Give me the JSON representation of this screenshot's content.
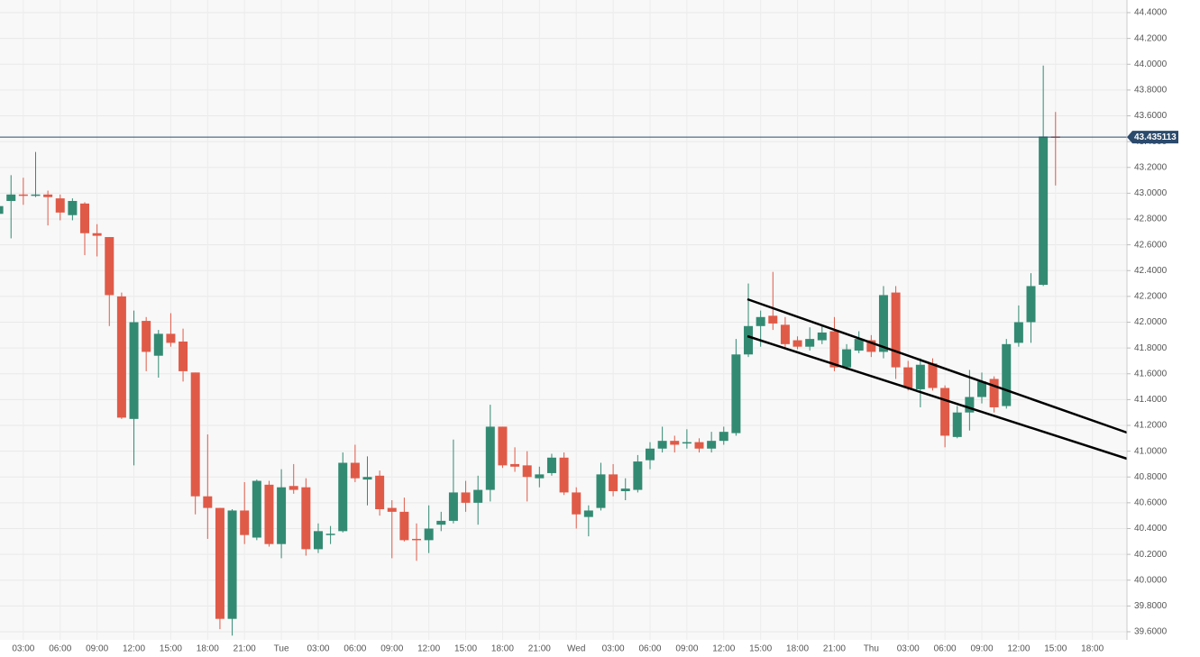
{
  "chart_data": {
    "type": "candlestick",
    "categories": [
      null,
      null,
      "03:00",
      null,
      null,
      "06:00",
      null,
      null,
      "09:00",
      null,
      null,
      "12:00",
      null,
      null,
      "15:00",
      null,
      null,
      "18:00",
      null,
      null,
      "21:00",
      null,
      null,
      "Tue",
      null,
      null,
      "03:00",
      null,
      null,
      "06:00",
      null,
      null,
      "09:00",
      null,
      null,
      "12:00",
      null,
      null,
      "15:00",
      null,
      null,
      "18:00",
      null,
      null,
      "21:00",
      null,
      null,
      "Wed",
      null,
      null,
      "03:00",
      null,
      null,
      "06:00",
      null,
      null,
      "09:00",
      null,
      null,
      "12:00",
      null,
      null,
      "15:00",
      null,
      null,
      "18:00",
      null,
      null,
      "21:00",
      null,
      null,
      "Thu",
      null,
      null,
      "03:00",
      null,
      null,
      "06:00",
      null,
      null,
      "09:00",
      null,
      null,
      "12:00",
      null,
      null,
      "15:00",
      null,
      null,
      "18:00"
    ],
    "open": [
      42.84,
      42.94,
      42.99,
      42.98,
      42.99,
      42.96,
      42.83,
      42.92,
      42.69,
      42.66,
      42.2,
      41.25,
      42.01,
      41.74,
      41.91,
      41.85,
      41.61,
      40.65,
      40.56,
      39.7,
      40.54,
      40.33,
      40.74,
      40.28,
      40.73,
      40.72,
      40.24,
      40.35,
      40.38,
      40.91,
      40.78,
      40.81,
      40.56,
      40.53,
      40.32,
      40.31,
      40.43,
      40.46,
      40.68,
      40.6,
      40.7,
      41.19,
      40.9,
      40.89,
      40.79,
      40.83,
      40.95,
      40.68,
      40.49,
      40.56,
      40.82,
      40.69,
      40.7,
      40.93,
      41.02,
      41.08,
      41.06,
      41.07,
      41.02,
      41.08,
      41.14,
      41.75,
      41.97,
      42.05,
      41.98,
      41.86,
      41.81,
      41.86,
      41.93,
      41.65,
      41.78,
      41.86,
      41.77,
      42.23,
      41.65,
      41.48,
      41.68,
      41.49,
      41.11,
      41.3,
      41.42,
      41.56,
      41.35,
      41.84,
      42.0,
      42.29,
      43.44,
      null,
      null,
      null
    ],
    "high": [
      42.93,
      43.14,
      43.12,
      43.32,
      43.02,
      42.99,
      42.96,
      42.93,
      42.76,
      42.66,
      42.23,
      42.09,
      42.04,
      41.94,
      42.07,
      41.95,
      41.61,
      41.13,
      40.56,
      40.55,
      40.76,
      40.78,
      40.77,
      40.86,
      40.9,
      40.79,
      40.44,
      40.42,
      40.99,
      41.05,
      40.96,
      40.85,
      40.62,
      40.64,
      40.44,
      40.58,
      40.53,
      41.09,
      40.77,
      40.81,
      41.36,
      41.19,
      41.03,
      41.0,
      40.88,
      40.98,
      40.99,
      40.72,
      40.58,
      40.91,
      40.9,
      40.79,
      40.97,
      41.07,
      41.19,
      41.12,
      41.17,
      41.1,
      41.15,
      41.19,
      41.87,
      42.3,
      42.09,
      42.39,
      42.04,
      41.89,
      41.96,
      41.98,
      42.04,
      41.83,
      41.93,
      41.9,
      42.28,
      42.28,
      41.7,
      41.72,
      41.72,
      41.51,
      41.35,
      41.63,
      41.61,
      41.58,
      41.87,
      42.13,
      42.38,
      43.99,
      43.63,
      null,
      null,
      null
    ],
    "low": [
      42.8,
      42.65,
      42.91,
      42.97,
      42.75,
      42.79,
      42.79,
      42.52,
      42.51,
      41.97,
      41.25,
      40.89,
      41.62,
      41.57,
      41.81,
      41.54,
      40.51,
      40.32,
      39.62,
      39.57,
      40.28,
      40.31,
      40.26,
      40.17,
      40.67,
      40.19,
      40.21,
      40.28,
      40.37,
      40.76,
      40.58,
      40.5,
      40.17,
      40.3,
      40.15,
      40.21,
      40.38,
      40.44,
      40.53,
      40.43,
      40.61,
      40.87,
      40.84,
      40.61,
      40.72,
      40.81,
      40.66,
      40.4,
      40.34,
      40.54,
      40.65,
      40.62,
      40.68,
      40.86,
      40.99,
      40.99,
      41.02,
      40.99,
      40.99,
      41.05,
      41.12,
      41.73,
      41.81,
      41.94,
      41.8,
      41.79,
      41.78,
      41.83,
      41.62,
      41.63,
      41.76,
      41.73,
      41.72,
      41.56,
      41.47,
      41.34,
      41.47,
      41.03,
      41.1,
      41.16,
      41.37,
      41.3,
      41.33,
      41.81,
      41.84,
      42.28,
      43.06,
      null,
      null,
      null
    ],
    "close": [
      42.9,
      42.99,
      42.98,
      42.99,
      42.97,
      42.85,
      42.94,
      42.69,
      42.67,
      42.21,
      41.26,
      42.0,
      41.77,
      41.91,
      41.84,
      41.62,
      40.65,
      40.56,
      39.7,
      40.54,
      40.35,
      40.77,
      40.28,
      40.72,
      40.7,
      40.24,
      40.38,
      40.36,
      40.91,
      40.79,
      40.8,
      40.55,
      40.53,
      40.31,
      40.31,
      40.4,
      40.46,
      40.68,
      40.6,
      40.7,
      41.19,
      40.89,
      40.88,
      40.8,
      40.82,
      40.95,
      40.68,
      40.51,
      40.54,
      40.82,
      40.69,
      40.71,
      40.92,
      41.02,
      41.08,
      41.05,
      41.07,
      41.02,
      41.08,
      41.15,
      41.75,
      41.97,
      42.04,
      41.99,
      41.83,
      41.81,
      41.87,
      41.92,
      41.65,
      41.79,
      41.87,
      41.77,
      42.21,
      41.65,
      41.49,
      41.67,
      41.49,
      41.12,
      41.3,
      41.42,
      41.54,
      41.34,
      41.83,
      42.0,
      42.28,
      43.44,
      43.43,
      null,
      null,
      null
    ],
    "up_color": "#338a72",
    "down_color": "#e05a48",
    "last_price": 43.435113,
    "last_price_color": "#2b4a6c",
    "ylim": [
      39.537,
      44.498
    ],
    "yticks": [
      {
        "value": 39.6,
        "label": "39.6000"
      },
      {
        "value": 39.8,
        "label": "39.8000"
      },
      {
        "value": 40.0,
        "label": "40.0000"
      },
      {
        "value": 40.2,
        "label": "40.2000"
      },
      {
        "value": 40.4,
        "label": "40.4000"
      },
      {
        "value": 40.6,
        "label": "40.6000"
      },
      {
        "value": 40.8,
        "label": "40.8000"
      },
      {
        "value": 41.0,
        "label": "41.0000"
      },
      {
        "value": 41.2,
        "label": "41.2000"
      },
      {
        "value": 41.4,
        "label": "41.4000"
      },
      {
        "value": 41.6,
        "label": "41.6000"
      },
      {
        "value": 41.8,
        "label": "41.8000"
      },
      {
        "value": 42.0,
        "label": "42.0000"
      },
      {
        "value": 42.2,
        "label": "42.2000"
      },
      {
        "value": 42.4,
        "label": "42.4000"
      },
      {
        "value": 42.6,
        "label": "42.6000"
      },
      {
        "value": 42.8,
        "label": "42.8000"
      },
      {
        "value": 43.0,
        "label": "43.0000"
      },
      {
        "value": 43.2,
        "label": "43.2000"
      },
      {
        "value": 43.4,
        "label": "43.4000"
      },
      {
        "value": 43.6,
        "label": "43.6000"
      },
      {
        "value": 43.8,
        "label": "43.8000"
      },
      {
        "value": 44.0,
        "label": "44.0000"
      },
      {
        "value": 44.2,
        "label": "44.2000"
      },
      {
        "value": 44.4,
        "label": "44.4000"
      }
    ],
    "grid": true
  }
}
